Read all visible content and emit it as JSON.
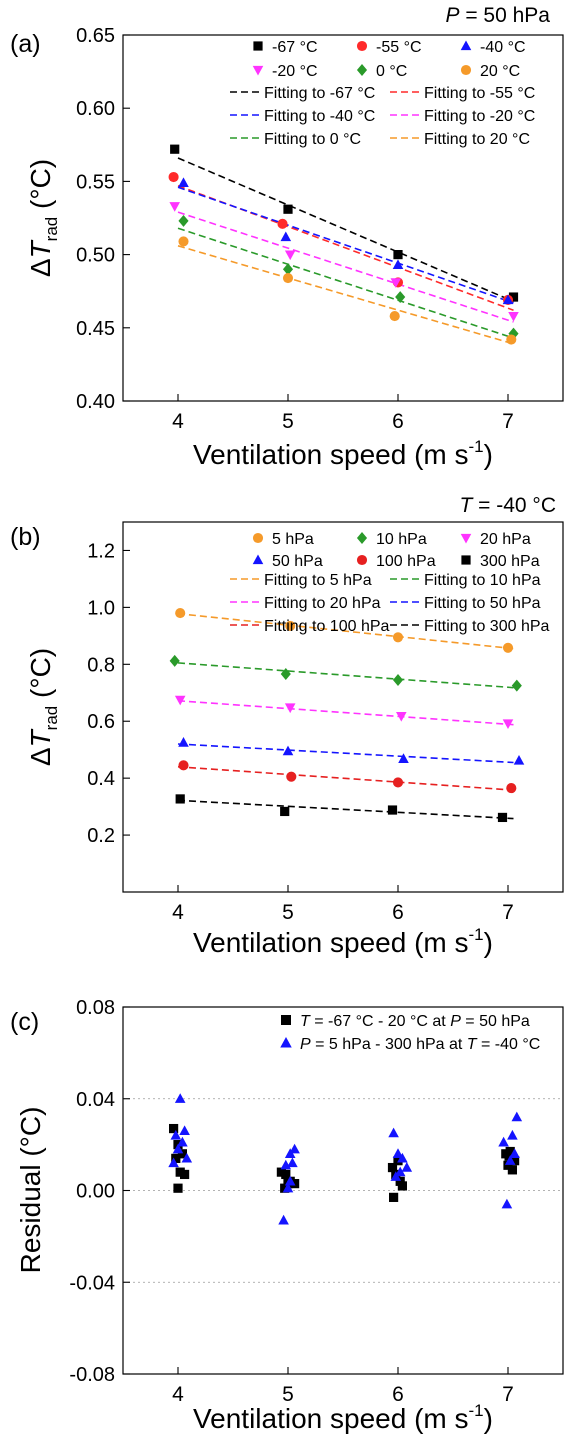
{
  "colors": {
    "-67": "#000000",
    "-55": "#ff2a2a",
    "-40": "#1414ff",
    "-20": "#ff33ff",
    "0": "#2a9a2a",
    "20": "#f59a2a",
    "5": "#f59a2a",
    "10": "#2a9a2a",
    "20h": "#ff33ff",
    "50": "#1414ff",
    "100": "#e62020",
    "300": "#000000"
  },
  "chart_data": [
    {
      "type": "scatter",
      "panel_label": "(a)",
      "corner_var": "P",
      "corner_rest": " = 50 hPa",
      "xlabel": "Ventilation speed (m s",
      "xlabel_sup": "-1",
      "xlabel_close": ")",
      "ylabel_prefix": "Δ",
      "ylabel_var": "T",
      "ylabel_sub": "rad",
      "ylabel_unit": " (°C)",
      "xlim": [
        3.5,
        7.5
      ],
      "ylim": [
        0.4,
        0.65
      ],
      "xticks": [
        "4",
        "5",
        "6",
        "7"
      ],
      "yticks": [
        "0.40",
        "0.45",
        "0.50",
        "0.55",
        "0.60",
        "0.65"
      ],
      "legend_markers": [
        "-67 °C",
        "-55 °C",
        "-40 °C",
        "-20 °C",
        "0 °C",
        "20 °C"
      ],
      "legend_fits": [
        "Fitting to -67 °C",
        "Fitting to -55 °C",
        "Fitting to -40 °C",
        "Fitting to -20 °C",
        "Fitting to    0 °C",
        "Fitting to  20 °C"
      ],
      "series": [
        {
          "key": "-67",
          "marker": "square",
          "x": [
            3.97,
            5.0,
            6.0,
            7.05
          ],
          "y": [
            0.572,
            0.531,
            0.5,
            0.471
          ],
          "fit": [
            [
              4.0,
              0.566
            ],
            [
              7.05,
              0.468
            ]
          ]
        },
        {
          "key": "-55",
          "marker": "circle",
          "x": [
            3.96,
            4.95,
            6.0,
            7.0
          ],
          "y": [
            0.553,
            0.521,
            0.481,
            0.469
          ],
          "fit": [
            [
              4.0,
              0.547
            ],
            [
              7.05,
              0.462
            ]
          ]
        },
        {
          "key": "-40",
          "marker": "triangle-up",
          "x": [
            4.05,
            4.98,
            6.0,
            7.0
          ],
          "y": [
            0.549,
            0.512,
            0.493,
            0.469
          ],
          "fit": [
            [
              4.0,
              0.546
            ],
            [
              7.05,
              0.467
            ]
          ]
        },
        {
          "key": "-20",
          "marker": "triangle-down",
          "x": [
            3.97,
            5.02,
            5.98,
            7.05
          ],
          "y": [
            0.533,
            0.5,
            0.481,
            0.458
          ],
          "fit": [
            [
              4.0,
              0.529
            ],
            [
              7.05,
              0.454
            ]
          ]
        },
        {
          "key": "0",
          "marker": "diamond",
          "x": [
            4.05,
            5.0,
            6.02,
            7.05
          ],
          "y": [
            0.523,
            0.49,
            0.471,
            0.446
          ],
          "fit": [
            [
              4.0,
              0.518
            ],
            [
              7.05,
              0.443
            ]
          ]
        },
        {
          "key": "20",
          "marker": "circle",
          "x": [
            4.05,
            5.0,
            5.97,
            7.03
          ],
          "y": [
            0.509,
            0.484,
            0.458,
            0.442
          ],
          "fit": [
            [
              4.0,
              0.506
            ],
            [
              7.05,
              0.439
            ]
          ]
        }
      ]
    },
    {
      "type": "scatter",
      "panel_label": "(b)",
      "corner_var": "T",
      "corner_rest": " = -40 °C",
      "xlabel": "Ventilation speed (m s",
      "xlabel_sup": "-1",
      "xlabel_close": ")",
      "ylabel_prefix": "Δ",
      "ylabel_var": "T",
      "ylabel_sub": "rad",
      "ylabel_unit": " (°C)",
      "xlim": [
        3.5,
        7.5
      ],
      "ylim": [
        0.0,
        1.3
      ],
      "xticks": [
        "4",
        "5",
        "6",
        "7"
      ],
      "yticks": [
        "0.2",
        "0.4",
        "0.6",
        "0.8",
        "1.0",
        "1.2"
      ],
      "legend_markers": [
        "5 hPa",
        "10 hPa",
        "20 hPa",
        "50 hPa",
        "100 hPa",
        "300 hPa"
      ],
      "legend_fits": [
        "Fitting to     5 hPa",
        "Fitting to   10 hPa",
        "Fitting to   20 hPa",
        "Fitting to   50 hPa",
        "Fitting to 100 hPa",
        "Fitting to 300 hPa"
      ],
      "series": [
        {
          "key": "5",
          "marker": "circle",
          "x": [
            4.02,
            5.02,
            6.0,
            7.0
          ],
          "y": [
            0.98,
            0.935,
            0.895,
            0.858
          ],
          "fit": [
            [
              4.0,
              0.978
            ],
            [
              7.05,
              0.855
            ]
          ]
        },
        {
          "key": "10",
          "marker": "diamond",
          "x": [
            3.97,
            4.98,
            6.0,
            7.08
          ],
          "y": [
            0.812,
            0.766,
            0.745,
            0.725
          ],
          "fit": [
            [
              4.0,
              0.805
            ],
            [
              7.05,
              0.718
            ]
          ]
        },
        {
          "key": "20h",
          "marker": "triangle-down",
          "x": [
            4.02,
            5.02,
            6.03,
            7.0
          ],
          "y": [
            0.675,
            0.648,
            0.618,
            0.592
          ],
          "fit": [
            [
              4.0,
              0.672
            ],
            [
              7.05,
              0.588
            ]
          ]
        },
        {
          "key": "50",
          "marker": "triangle-up",
          "x": [
            4.05,
            5.0,
            6.05,
            7.1
          ],
          "y": [
            0.525,
            0.495,
            0.468,
            0.462
          ],
          "fit": [
            [
              4.0,
              0.52
            ],
            [
              7.05,
              0.455
            ]
          ]
        },
        {
          "key": "100",
          "marker": "circle",
          "x": [
            4.05,
            5.03,
            6.0,
            7.03
          ],
          "y": [
            0.445,
            0.405,
            0.385,
            0.365
          ],
          "fit": [
            [
              4.0,
              0.44
            ],
            [
              7.05,
              0.358
            ]
          ]
        },
        {
          "key": "300",
          "marker": "square",
          "x": [
            4.02,
            4.97,
            5.95,
            6.95
          ],
          "y": [
            0.327,
            0.283,
            0.288,
            0.262
          ],
          "fit": [
            [
              4.0,
              0.322
            ],
            [
              7.05,
              0.258
            ]
          ]
        }
      ]
    },
    {
      "type": "scatter",
      "panel_label": "(c)",
      "xlabel": "Ventilation speed (m s",
      "xlabel_sup": "-1",
      "xlabel_close": ")",
      "ylabel_text": "Residual (°C)",
      "xlim": [
        3.5,
        7.5
      ],
      "ylim": [
        -0.08,
        0.08
      ],
      "xticks": [
        "4",
        "5",
        "6",
        "7"
      ],
      "yticks": [
        "-0.08",
        "-0.04",
        "0.00",
        "0.04",
        "0.08"
      ],
      "grid_y": [
        -0.04,
        0.0,
        0.04
      ],
      "legend": [
        {
          "var1": "T",
          "text1": " = -67 °C - 20 °C at ",
          "var2": "P",
          "text2": " =  50 hPa",
          "marker": "square",
          "color": "#000000"
        },
        {
          "var1": "P",
          "text1": " =  5 hPa - 300 hPa at ",
          "var2": "T",
          "text2": " = -40 °C",
          "marker": "triangle-up",
          "color": "#1414ff"
        }
      ],
      "series": [
        {
          "color": "#000000",
          "marker": "square",
          "x": [
            3.96,
            4.0,
            4.04,
            3.98,
            4.06,
            4.02,
            4.0,
            4.94,
            4.98,
            5.02,
            5.06,
            5.0,
            4.97,
            5.95,
            5.98,
            6.02,
            6.04,
            5.96,
            6.0,
            6.98,
            7.02,
            7.06,
            7.0,
            7.04,
            7.01
          ],
          "y": [
            0.027,
            0.02,
            0.016,
            0.014,
            0.007,
            0.008,
            0.001,
            0.008,
            0.007,
            0.004,
            0.003,
            0.003,
            0.001,
            0.01,
            0.007,
            0.004,
            0.002,
            -0.003,
            0.013,
            0.016,
            0.017,
            0.013,
            0.011,
            0.009,
            0.015
          ]
        },
        {
          "color": "#1414ff",
          "marker": "triangle-up",
          "x": [
            4.02,
            4.06,
            3.98,
            4.04,
            4.0,
            3.96,
            4.08,
            5.06,
            5.02,
            5.04,
            4.98,
            5.02,
            4.96,
            5.0,
            5.96,
            6.0,
            6.04,
            6.08,
            6.02,
            5.98,
            7.08,
            6.96,
            7.04,
            7.06,
            7.02,
            6.99
          ],
          "y": [
            0.04,
            0.026,
            0.024,
            0.021,
            0.018,
            0.012,
            0.014,
            0.018,
            0.016,
            0.012,
            0.011,
            0.004,
            -0.013,
            0.001,
            0.025,
            0.016,
            0.014,
            0.01,
            0.008,
            0.006,
            0.032,
            0.021,
            0.024,
            0.016,
            0.013,
            -0.006
          ]
        }
      ]
    }
  ]
}
